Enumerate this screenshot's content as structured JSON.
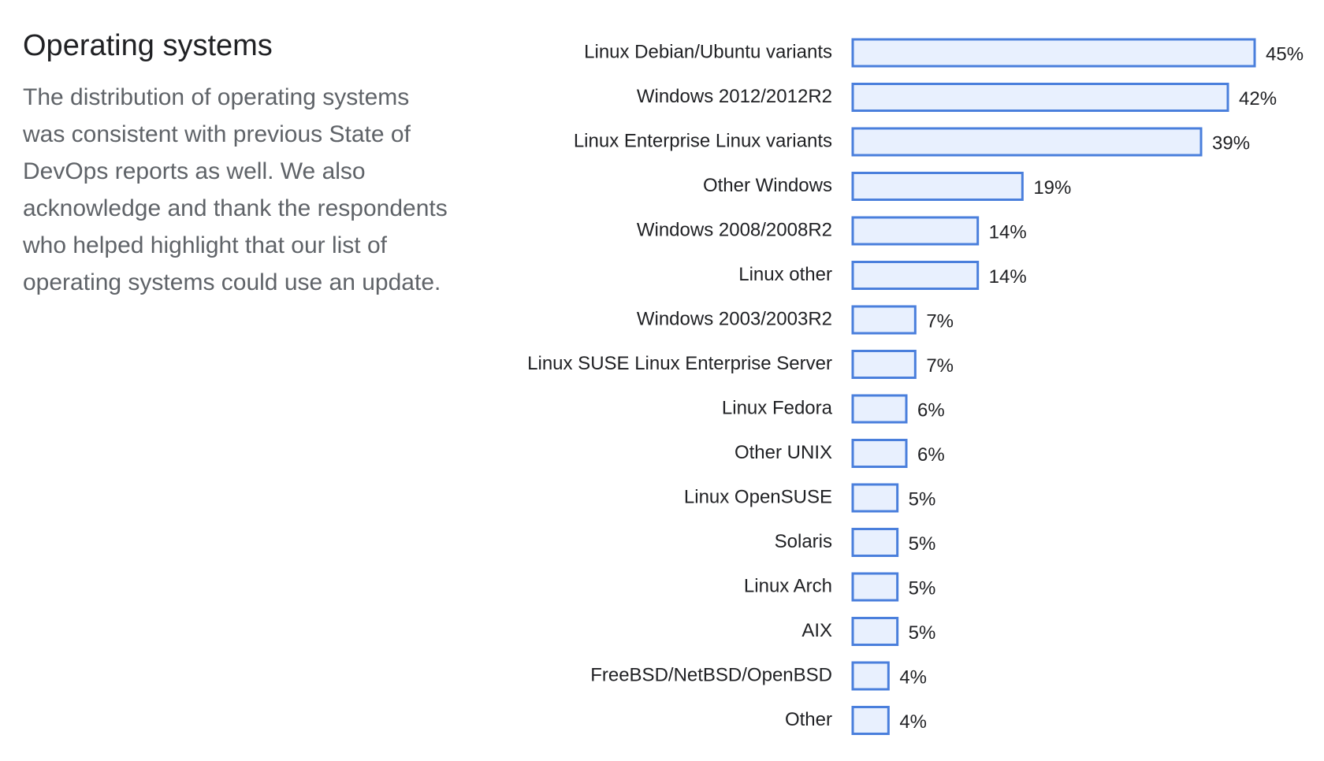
{
  "heading": {
    "title": "Operating systems",
    "description": "The distribution of operating systems was consistent with previous State of DevOps reports as well. We also acknowledge and thank the respondents who helped highlight that our list of operating systems could use an update."
  },
  "colors": {
    "bar_fill": "#e8f0fe",
    "bar_stroke": "#4a7fdc",
    "label_text": "#202124",
    "description_text": "#5f6368"
  },
  "chart_data": {
    "type": "bar",
    "orientation": "horizontal",
    "categories": [
      "Linux Debian/Ubuntu variants",
      "Windows 2012/2012R2",
      "Linux Enterprise Linux variants",
      "Other Windows",
      "Windows 2008/2008R2",
      "Linux other",
      "Windows 2003/2003R2",
      "Linux SUSE Linux Enterprise Server",
      "Linux Fedora",
      "Other UNIX",
      "Linux OpenSUSE",
      "Solaris",
      "Linux Arch",
      "AIX",
      "FreeBSD/NetBSD/OpenBSD",
      "Other"
    ],
    "values": [
      45,
      42,
      39,
      19,
      14,
      14,
      7,
      7,
      6,
      6,
      5,
      5,
      5,
      5,
      4,
      4
    ],
    "value_labels": [
      "45%",
      "42%",
      "39%",
      "19%",
      "14%",
      "14%",
      "7%",
      "7%",
      "6%",
      "6%",
      "5%",
      "5%",
      "5%",
      "5%",
      "4%",
      "4%"
    ],
    "unit": "%",
    "xlim": [
      0,
      45
    ],
    "grid": false,
    "legend": "none"
  }
}
